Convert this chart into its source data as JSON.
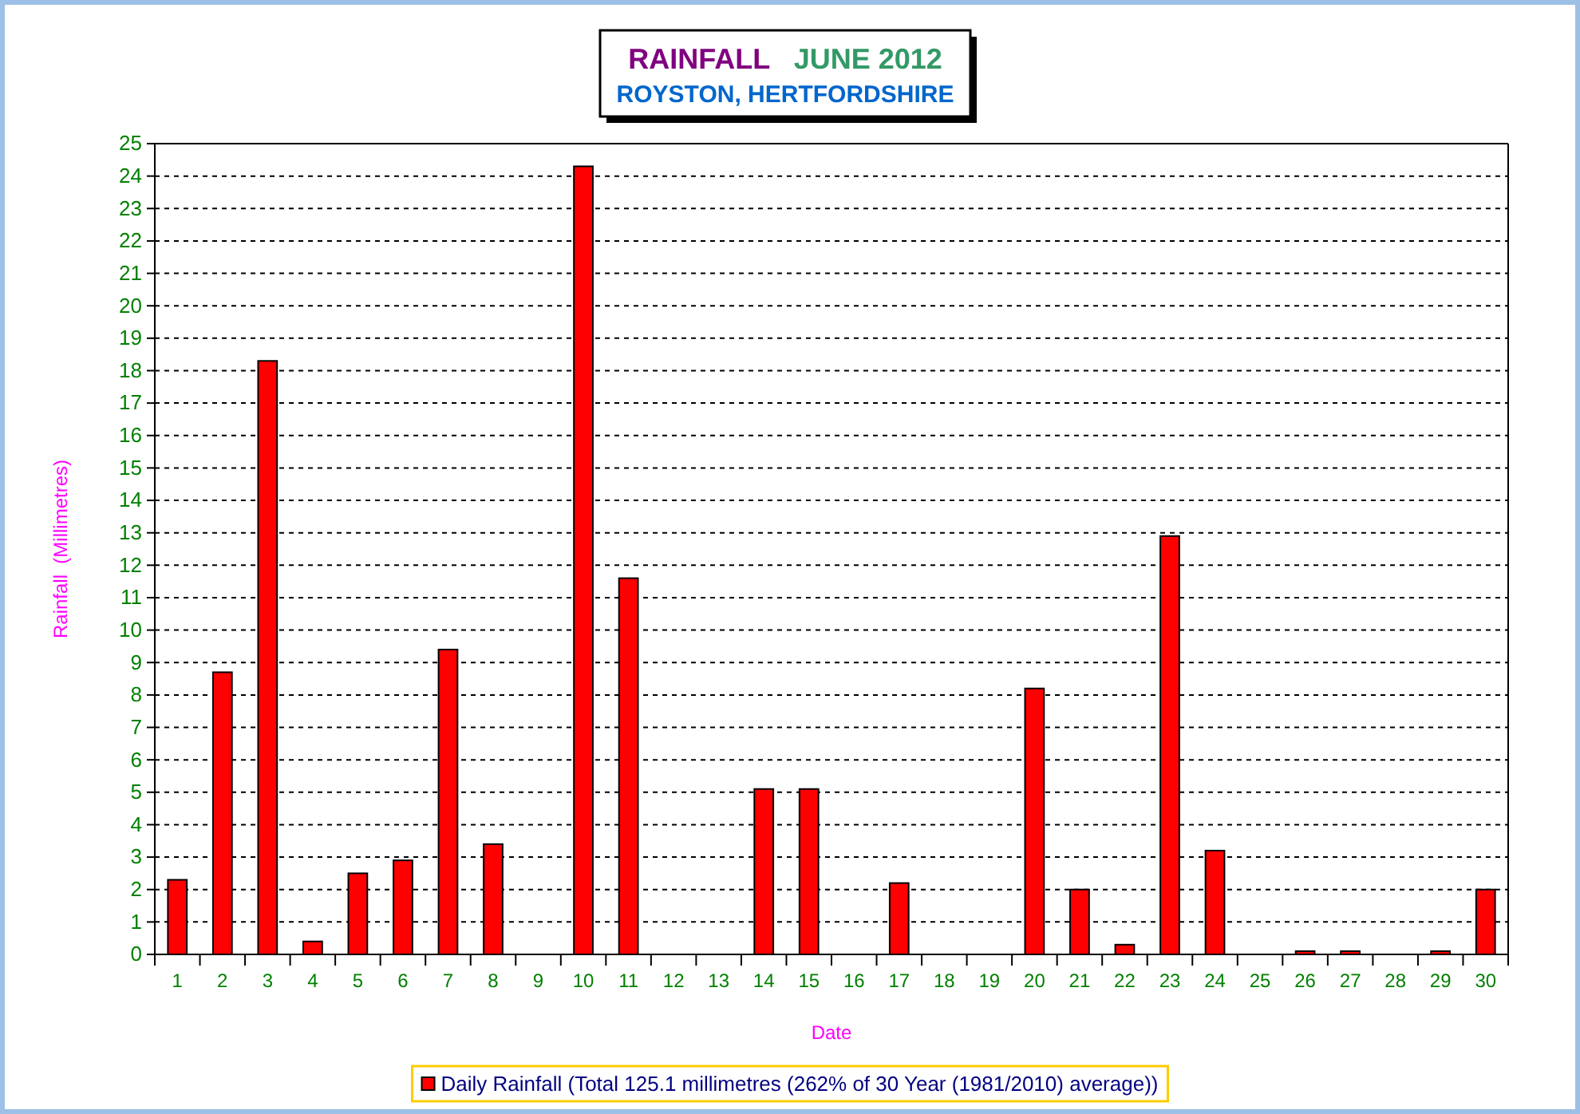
{
  "chart_data": {
    "type": "bar",
    "title": "RAINFALL   JUNE 2012",
    "subtitle": "ROYSTON, HERTFORDSHIRE",
    "xlabel": "Date",
    "ylabel": "Rainfall  (Millimetres)",
    "categories": [
      "1",
      "2",
      "3",
      "4",
      "5",
      "6",
      "7",
      "8",
      "9",
      "10",
      "11",
      "12",
      "13",
      "14",
      "15",
      "16",
      "17",
      "18",
      "19",
      "20",
      "21",
      "22",
      "23",
      "24",
      "25",
      "26",
      "27",
      "28",
      "29",
      "30"
    ],
    "series": [
      {
        "name": "Daily Rainfall (Total 125.1 millimetres (262% of 30 Year (1981/2010) average))",
        "color": "#ff0000",
        "values": [
          2.3,
          8.7,
          18.3,
          0.4,
          2.5,
          2.9,
          9.4,
          3.4,
          0,
          24.3,
          11.6,
          0,
          0,
          5.1,
          5.1,
          0,
          2.2,
          0,
          0,
          8.2,
          2.0,
          0.3,
          12.9,
          3.2,
          0,
          0.1,
          0.1,
          0,
          0.1,
          2.0
        ]
      }
    ],
    "ylim": [
      0,
      25
    ],
    "yticks": [
      0,
      1,
      2,
      3,
      4,
      5,
      6,
      7,
      8,
      9,
      10,
      11,
      12,
      13,
      14,
      15,
      16,
      17,
      18,
      19,
      20,
      21,
      22,
      23,
      24,
      25
    ],
    "grid": "y",
    "legend": "bottom"
  }
}
